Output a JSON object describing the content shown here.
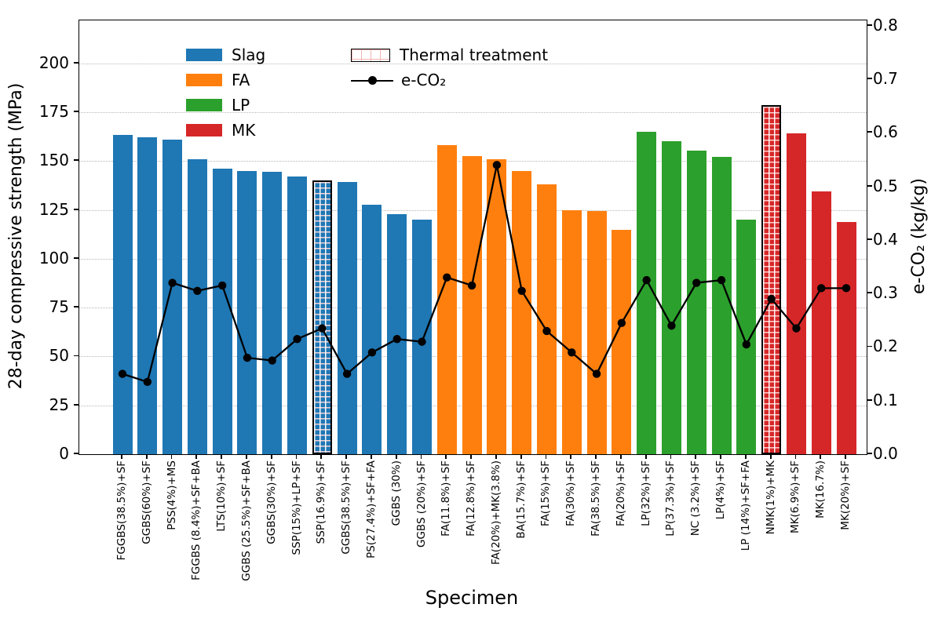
{
  "figure": {
    "xlabel": "Specimen",
    "ylabel_left": "28-day compressive strength (MPa)",
    "ylabel_right": "e-CO₂ (kg/kg)"
  },
  "legend": {
    "groups": [
      {
        "label": "Slag",
        "color": "#1f77b4"
      },
      {
        "label": "FA",
        "color": "#ff7f0e"
      },
      {
        "label": "LP",
        "color": "#2ca02c"
      },
      {
        "label": "MK",
        "color": "#d62728"
      }
    ],
    "thermal_label": "Thermal treatment",
    "eco2_label": "e-CO₂"
  },
  "chart_data": {
    "type": "bar",
    "title": "",
    "xlabel": "Specimen",
    "categories": [
      "FGGBS(38.5%)+SF",
      "GGBS(60%)+SF",
      "PSS(4%)+MS",
      "FGGBS (8.4%)+SF+BA",
      "LTS(10%)+SF",
      "GGBS (25.5%)+SF+BA",
      "GGBS(30%)+SF",
      "SSP(15%)+LP+SF",
      "SSP(16.9%)+SF",
      "GGBS(38.5%)+SF",
      "PS(27.4%)+SF+FA",
      "GGBS (30%)",
      "GGBS (20%)+SF",
      "FA(11.8%)+SF",
      "FA(12.8%)+SF",
      "FA(20%)+MK(3.8%)",
      "BA(15.7%)+SF",
      "FA(15%)+SF",
      "FA(30%)+SF",
      "FA(38.5%)+SF",
      "FA(20%)+SF",
      "LP(32%)+SF",
      "LP(37.3%)+SF",
      "NC (3.2%)+SF",
      "LP(4%)+SF",
      "LP (14%)+SF+FA",
      "NMK(1%)+MK",
      "MK(6.9%)+SF",
      "MK(16.7%)",
      "MK(20%)+SF"
    ],
    "series": [
      {
        "name": "28-day compressive strength (MPa)",
        "type": "bar",
        "axis": "left",
        "values": [
          163.5,
          162,
          161,
          151,
          146,
          145,
          144.5,
          142,
          140,
          139.5,
          127.5,
          123,
          120,
          158,
          152.5,
          151,
          145,
          138,
          125,
          124.5,
          115,
          165,
          160,
          155.5,
          152,
          120,
          178.5,
          164,
          134.5,
          119
        ],
        "group": [
          "Slag",
          "Slag",
          "Slag",
          "Slag",
          "Slag",
          "Slag",
          "Slag",
          "Slag",
          "Slag",
          "Slag",
          "Slag",
          "Slag",
          "Slag",
          "FA",
          "FA",
          "FA",
          "FA",
          "FA",
          "FA",
          "FA",
          "FA",
          "LP",
          "LP",
          "LP",
          "LP",
          "LP",
          "MK",
          "MK",
          "MK",
          "MK"
        ]
      },
      {
        "name": "e-CO₂",
        "type": "line",
        "axis": "right",
        "color": "#000000",
        "values": [
          0.15,
          0.135,
          0.32,
          0.305,
          0.315,
          0.18,
          0.175,
          0.215,
          0.235,
          0.15,
          0.19,
          0.215,
          0.21,
          0.33,
          0.315,
          0.54,
          0.305,
          0.23,
          0.19,
          0.15,
          0.245,
          0.325,
          0.24,
          0.32,
          0.325,
          0.205,
          0.29,
          0.235,
          0.31,
          0.31
        ]
      }
    ],
    "hatched_indices": [
      8,
      26
    ],
    "hatch_meaning": "Thermal treatment",
    "left_axis": {
      "label": "28-day compressive strength (MPa)",
      "ticks": [
        0,
        25,
        50,
        75,
        100,
        125,
        150,
        175,
        200
      ],
      "range": [
        0,
        222
      ]
    },
    "right_axis": {
      "label": "e-CO₂ (kg/kg)",
      "ticks": [
        0,
        0.1,
        0.2,
        0.3,
        0.4,
        0.5,
        0.6,
        0.7,
        0.8
      ],
      "range": [
        0,
        0.81
      ]
    },
    "grid": {
      "horizontal": true,
      "style": "dotted",
      "aligned_to": "left_ticks"
    },
    "legend_position": "upper-left"
  }
}
